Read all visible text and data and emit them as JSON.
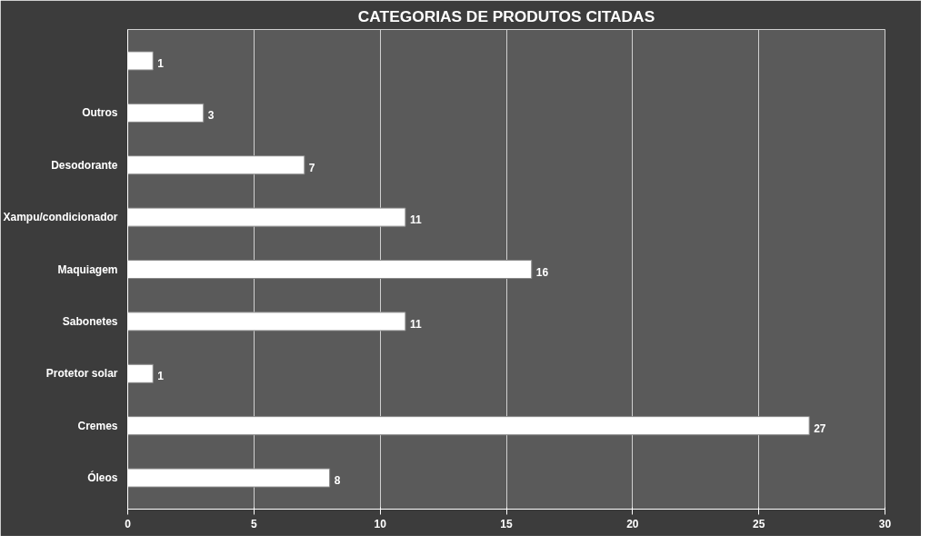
{
  "chart_data": {
    "type": "bar",
    "orientation": "horizontal",
    "title": "CATEGORIAS DE PRODUTOS CITADAS",
    "categories": [
      null,
      "Outros",
      "Desodorante",
      "Xampu/condicionador",
      "Maquiagem",
      "Sabonetes",
      "Protetor solar",
      "Cremes",
      "Óleos"
    ],
    "values": [
      1,
      3,
      7,
      11,
      16,
      11,
      1,
      27,
      8
    ],
    "color": "#ffffff",
    "xlim": [
      0,
      30
    ],
    "xticks": [
      0,
      5,
      10,
      15,
      20,
      25,
      30
    ],
    "grid": "x",
    "data_labels": true
  }
}
